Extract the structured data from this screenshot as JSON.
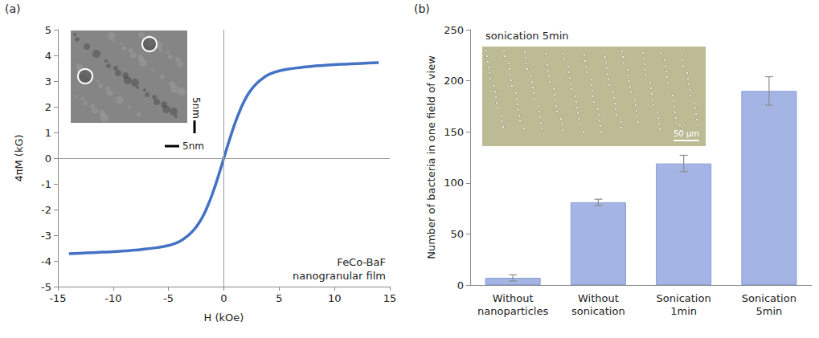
{
  "chart_data": [
    {
      "type": "line",
      "panel": "(a)",
      "x_label": "H (kOe)",
      "y_label": "4πM (kG)",
      "annotations": [
        "FeCo-BaF nanogranular film",
        "5nm",
        "5nm"
      ],
      "x": [
        -14,
        -13,
        -12,
        -11,
        -10,
        -9,
        -8,
        -7,
        -6,
        -5,
        -4.5,
        -4,
        -3.5,
        -3,
        -2.5,
        -2,
        -1.5,
        -1,
        -0.5,
        0,
        0.5,
        1,
        1.5,
        2,
        2.5,
        3,
        3.5,
        4,
        4.5,
        5,
        6,
        7,
        8,
        9,
        10,
        11,
        12,
        13,
        14
      ],
      "values": [
        -3.72,
        -3.7,
        -3.68,
        -3.66,
        -3.64,
        -3.61,
        -3.58,
        -3.53,
        -3.48,
        -3.4,
        -3.33,
        -3.24,
        -3.1,
        -2.92,
        -2.68,
        -2.35,
        -1.9,
        -1.35,
        -0.7,
        0,
        0.7,
        1.35,
        1.9,
        2.35,
        2.68,
        2.92,
        3.1,
        3.24,
        3.33,
        3.4,
        3.48,
        3.53,
        3.58,
        3.61,
        3.64,
        3.66,
        3.68,
        3.7,
        3.72
      ],
      "color": "#4472c4",
      "xlim": [
        -15,
        15
      ],
      "xticks": [
        -15,
        -10,
        -5,
        0,
        5,
        10,
        15
      ],
      "ylim": [
        -5,
        5
      ],
      "yticks": [
        -5,
        -4,
        -3,
        -2,
        -1,
        0,
        1,
        2,
        3,
        4,
        5
      ],
      "grid": false
    },
    {
      "type": "bar",
      "panel": "(b)",
      "y_label": "Number of bacteria in one field of view",
      "annotations": [
        "sonication 5min",
        "50 μm"
      ],
      "categories": [
        "Without nanoparticles",
        "Without sonication",
        "Sonication 1min",
        "Sonication 5min"
      ],
      "values": [
        7,
        81,
        119,
        190
      ],
      "errors": [
        3,
        3,
        8,
        14
      ],
      "color": "#a4b4e4",
      "ylim": [
        0,
        250
      ],
      "yticks": [
        0,
        50,
        100,
        150,
        200,
        250
      ],
      "grid": false
    }
  ]
}
